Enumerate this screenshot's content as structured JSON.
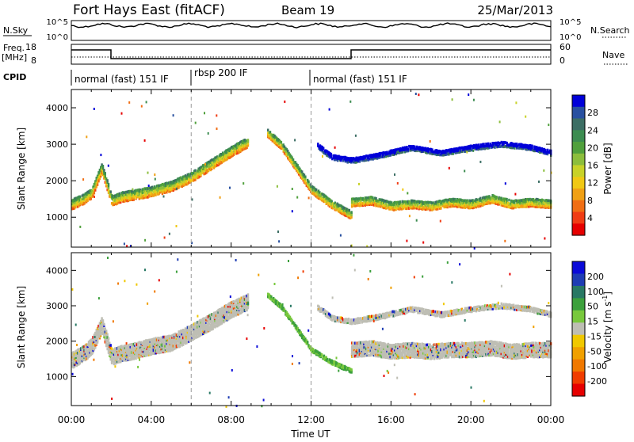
{
  "header": {
    "title": "Fort Hays East (fitACF)",
    "beam": "Beam 19",
    "date": "25/Mar/2013"
  },
  "top_panels": {
    "nsky_label": "N.Sky",
    "nsky_ticks": [
      "10^5",
      "10^0"
    ],
    "nsearch_label": "N.Search",
    "nsearch_ticks": [
      "10^5",
      "10^0"
    ],
    "freq_label_1": "Freq.",
    "freq_label_2": "[MHz]",
    "freq_ticks": [
      "18",
      "8"
    ],
    "nave_label": "Nave",
    "nave_ticks": [
      "60",
      "0"
    ],
    "cpid_label": "CPID",
    "cpid_segments": [
      {
        "start": 0,
        "end": 6,
        "label": "normal (fast) 151 IF"
      },
      {
        "start": 6,
        "end": 12,
        "label": "rbsp 200 IF"
      },
      {
        "start": 12,
        "end": 24,
        "label": "normal (fast) 151 IF"
      }
    ]
  },
  "x_axis": {
    "label": "Time UT",
    "ticks": [
      "00:00",
      "04:00",
      "08:00",
      "12:00",
      "16:00",
      "20:00",
      "00:00"
    ]
  },
  "chart_data": [
    {
      "type": "heatmap",
      "quantity": "Power",
      "ylabel": "Slant Range [km]",
      "yticks": [
        "4000",
        "3000",
        "2000",
        "1000"
      ],
      "ylim": [
        180,
        4500
      ],
      "xlim": [
        0,
        24
      ],
      "colorbar_label": "Power [dB]",
      "colorbar_ticks": [
        "28",
        "24",
        "20",
        "16",
        "12",
        "8",
        "4"
      ],
      "colors": [
        "#0000d8",
        "#2850a0",
        "#3c6e64",
        "#3c8c50",
        "#50a03c",
        "#8cbe3c",
        "#c8d228",
        "#f0c814",
        "#f0a014",
        "#f06e14",
        "#f03c14",
        "#e60000"
      ],
      "bands": [
        {
          "x": [
            0.0,
            0.6,
            1.0,
            1.5,
            2.0,
            2.5,
            3.0,
            4.0,
            5.0,
            6.0,
            7.0,
            8.0,
            8.8
          ],
          "y": [
            1400,
            1550,
            1700,
            2400,
            1500,
            1600,
            1650,
            1750,
            1900,
            2150,
            2500,
            2850,
            3100
          ],
          "w": 280
        },
        {
          "x": [
            9.8,
            10.5,
            11.0,
            11.5,
            12.0,
            13.0,
            14.0
          ],
          "y": [
            3350,
            3000,
            2600,
            2200,
            1800,
            1400,
            1100
          ],
          "w": 220
        },
        {
          "x": [
            14.0,
            15.0,
            16.0,
            17.0,
            18.0,
            19.0,
            20.0,
            21.0,
            22.0,
            23.0,
            24.0
          ],
          "y": [
            1450,
            1500,
            1350,
            1400,
            1350,
            1450,
            1400,
            1550,
            1400,
            1450,
            1400
          ],
          "w": 230
        },
        {
          "x": [
            12.3,
            13.0,
            14.0,
            15.5,
            17.0,
            18.5,
            20.0,
            21.5,
            23.0,
            24.0
          ],
          "y": [
            3000,
            2700,
            2600,
            2750,
            2950,
            2800,
            2950,
            3050,
            2950,
            2800
          ],
          "w": 150
        }
      ]
    },
    {
      "type": "heatmap",
      "quantity": "Velocity",
      "ylabel": "Slant Range [km]",
      "yticks": [
        "4000",
        "3000",
        "2000",
        "1000"
      ],
      "ylim": [
        180,
        4500
      ],
      "xlim": [
        0,
        24
      ],
      "colorbar_label": "Velocity [m s^-1]",
      "colorbar_ticks": [
        "200",
        "100",
        "50",
        "15",
        "-15",
        "-50",
        "-100",
        "-200"
      ],
      "colors": [
        "#0a0ad8",
        "#1e3cb4",
        "#287864",
        "#3ca03c",
        "#78c83c",
        "#bebeb4",
        "#f0c800",
        "#f0a000",
        "#f07800",
        "#f03c00",
        "#e60000"
      ],
      "bands": [
        {
          "x": [
            0.0,
            0.6,
            1.0,
            1.5,
            2.0,
            2.5,
            3.0,
            4.0,
            5.0,
            6.0,
            7.0,
            8.0,
            8.8
          ],
          "y": [
            1500,
            1700,
            1900,
            2500,
            1600,
            1700,
            1750,
            1900,
            2000,
            2300,
            2600,
            2950,
            3150
          ],
          "w": 450
        },
        {
          "x": [
            9.8,
            10.5,
            11.0,
            11.5,
            12.0,
            13.0,
            14.0
          ],
          "y": [
            3350,
            3000,
            2600,
            2200,
            1800,
            1450,
            1200
          ],
          "w": 120
        },
        {
          "x": [
            14.0,
            15.0,
            16.0,
            17.0,
            18.0,
            19.0,
            20.0,
            21.0,
            22.0,
            23.0,
            24.0
          ],
          "y": [
            1800,
            1850,
            1750,
            1800,
            1750,
            1800,
            1800,
            1850,
            1750,
            1800,
            1800
          ],
          "w": 420
        },
        {
          "x": [
            12.3,
            13.0,
            14.0,
            15.5,
            17.0,
            18.5,
            20.0,
            21.5,
            23.0,
            24.0
          ],
          "y": [
            3000,
            2700,
            2600,
            2750,
            2950,
            2800,
            2950,
            3050,
            2950,
            2800
          ],
          "w": 150
        }
      ]
    }
  ]
}
